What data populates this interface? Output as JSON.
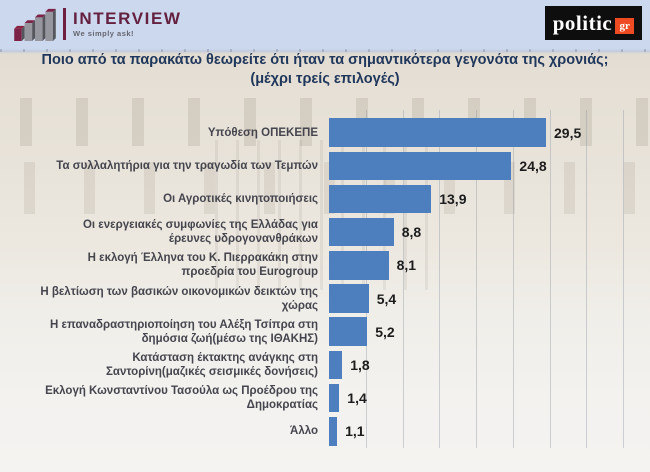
{
  "header": {
    "interview": {
      "brand": "INTERVIEW",
      "tagline": "We simply ask!",
      "icon": "bar-chart-3d-icon",
      "brand_color": "#64203f"
    },
    "politic": {
      "brand": "politic",
      "suffix": "gr",
      "bg_color": "#0e0e0e",
      "suffix_bg_color": "#ee4b23"
    }
  },
  "title": {
    "line1": "Ποιο από τα παρακάτω θεωρείτε ότι ήταν τα σημαντικότερα γεγονότα της χρονιάς;",
    "line2": "(μέχρι τρείς επιλογές)"
  },
  "chart_data": {
    "type": "bar",
    "orientation": "horizontal",
    "title": "Ποιο από τα παρακάτω θεωρείτε ότι ήταν τα σημαντικότερα γεγονότα της χρονιάς;",
    "subtitle": "(μέχρι τρείς επιλογές)",
    "categories": [
      "Υπόθεση ΟΠΕΚΕΠΕ",
      "Τα συλλαλητήρια για την τραγωδία των Τεμπών",
      "Οι Αγροτικές κινητοποιήσεις",
      "Οι ενεργειακές συμφωνίες της Ελλάδας για\nέρευνες υδρογονανθράκων",
      "Η εκλογή Έλληνα του Κ. Πιερρακάκη στην\nπροεδρία του Eurogroup",
      "Η βελτίωση των βασικών οικονομικών δεικτών της\nχώρας",
      "Η επαναδραστηριοποίηση του Αλέξη Τσίπρα στη\nδημόσια ζωή(μέσω της ΙΘΑΚΗΣ)",
      "Κατάσταση έκτακτης ανάγκης στη\nΣαντορίνη(μαζικές σεισμικές δονήσεις)",
      "Εκλογή Κωνσταντίνου Τασούλα ως Προέδρου της\nΔημοκρατίας",
      "Άλλο"
    ],
    "values": [
      29.5,
      24.8,
      13.9,
      8.8,
      8.1,
      5.4,
      5.2,
      1.8,
      1.4,
      1.1
    ],
    "value_labels": [
      "29,5",
      "24,8",
      "13,9",
      "8,8",
      "8,1",
      "5,4",
      "5,2",
      "1,8",
      "1,4",
      "1,1"
    ],
    "xlim": [
      0,
      40
    ],
    "gridlines_every": 5,
    "legend": "none",
    "bar_color": "#4d7ebd",
    "background": "faded photo of the Hellenic Parliament building"
  }
}
